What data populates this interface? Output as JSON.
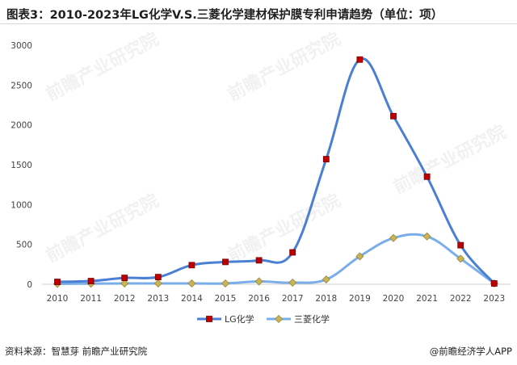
{
  "title": "图表3：2010-2023年LG化学V.S.三菱化学建材保护膜专利申请趋势（单位：项）",
  "footer": {
    "source": "资料来源：智慧芽 前瞻产业研究院",
    "brand": "@前瞻经济学人APP"
  },
  "watermark": {
    "text": "前瞻产业研究院"
  },
  "chart_data": {
    "type": "line",
    "categories": [
      "2010",
      "2011",
      "2012",
      "2013",
      "2014",
      "2015",
      "2016",
      "2017",
      "2018",
      "2019",
      "2020",
      "2021",
      "2022",
      "2023"
    ],
    "y_ticks": [
      0,
      500,
      1000,
      1500,
      2000,
      2500,
      3000
    ],
    "ylim": [
      0,
      3000
    ],
    "grid": false,
    "legend_position": "bottom",
    "smooth": true,
    "series": [
      {
        "name": "LG化学",
        "color": "#4a7fd4",
        "marker": "square",
        "marker_color": "#c00000",
        "values": [
          30,
          40,
          80,
          90,
          240,
          280,
          300,
          400,
          1570,
          2820,
          2110,
          1350,
          490,
          10
        ]
      },
      {
        "name": "三菱化学",
        "color": "#7aaeea",
        "marker": "diamond",
        "marker_color": "#c9b458",
        "values": [
          5,
          8,
          10,
          10,
          10,
          10,
          35,
          20,
          60,
          350,
          580,
          600,
          320,
          10
        ]
      }
    ]
  }
}
